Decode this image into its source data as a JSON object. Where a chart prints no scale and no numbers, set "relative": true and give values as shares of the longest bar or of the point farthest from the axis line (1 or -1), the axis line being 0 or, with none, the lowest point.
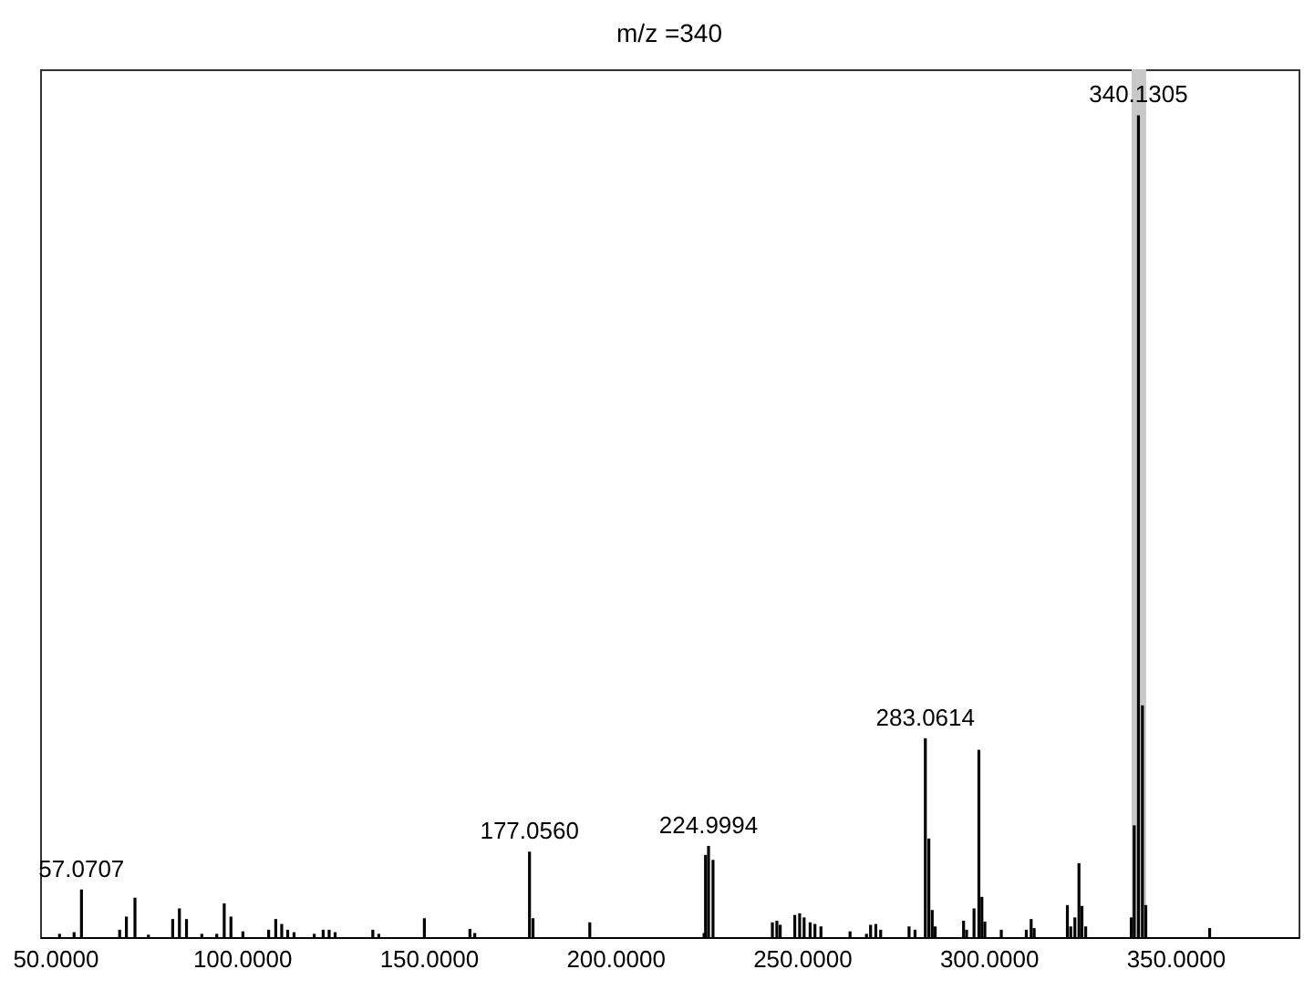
{
  "chart_data": {
    "type": "bar",
    "title": "m/z =340",
    "relative": true,
    "xlim": [
      46,
      383
    ],
    "xticks": [
      {
        "value": 50,
        "label": "50.0000"
      },
      {
        "value": 100,
        "label": "100.0000"
      },
      {
        "value": 150,
        "label": "150.0000"
      },
      {
        "value": 200,
        "label": "200.0000"
      },
      {
        "value": 250,
        "label": "250.0000"
      },
      {
        "value": 300,
        "label": "300.0000"
      },
      {
        "value": 350,
        "label": "350.0000"
      }
    ],
    "x": [
      51.2,
      55.1,
      57.0707,
      67.3,
      69.1,
      71.4,
      75.0,
      81.5,
      83.3,
      85.2,
      89.3,
      93.3,
      95.3,
      97.1,
      100.3,
      107.2,
      109.1,
      110.7,
      112.3,
      114.0,
      119.4,
      121.8,
      123.4,
      125.0,
      135.1,
      136.7,
      148.9,
      161.1,
      162.4,
      177.056,
      178.0,
      193.2,
      223.8,
      224.2,
      224.9994,
      226.2,
      242.1,
      243.3,
      244.2,
      248.1,
      249.4,
      250.6,
      252.2,
      253.5,
      255.1,
      262.9,
      267.3,
      268.4,
      269.8,
      271.1,
      278.7,
      280.3,
      283.0614,
      284.0,
      284.9,
      285.7,
      293.3,
      294.1,
      296.1,
      297.4,
      298.2,
      299.0,
      303.4,
      310.1,
      311.4,
      312.2,
      321.1,
      322.0,
      323.1,
      324.2,
      325.0,
      326.0,
      338.2,
      339.0,
      340.1305,
      341.2,
      342.1,
      359.2
    ],
    "series": [
      {
        "color": "#000000",
        "values": [
          0.004,
          0.006,
          0.058,
          0.009,
          0.025,
          0.048,
          0.003,
          0.022,
          0.035,
          0.022,
          0.004,
          0.004,
          0.041,
          0.025,
          0.007,
          0.009,
          0.022,
          0.016,
          0.009,
          0.006,
          0.004,
          0.009,
          0.009,
          0.006,
          0.009,
          0.004,
          0.023,
          0.01,
          0.005,
          0.104,
          0.023,
          0.018,
          0.005,
          0.1,
          0.111,
          0.094,
          0.018,
          0.02,
          0.015,
          0.027,
          0.029,
          0.024,
          0.018,
          0.016,
          0.013,
          0.007,
          0.004,
          0.015,
          0.016,
          0.009,
          0.013,
          0.009,
          0.242,
          0.12,
          0.033,
          0.013,
          0.02,
          0.009,
          0.035,
          0.228,
          0.049,
          0.019,
          0.009,
          0.009,
          0.022,
          0.011,
          0.039,
          0.013,
          0.024,
          0.09,
          0.038,
          0.013,
          0.024,
          0.136,
          1,
          0.282,
          0.039,
          0.011
        ]
      }
    ],
    "bands": [
      {
        "axis": "x",
        "from": 338.3,
        "to": 342.2,
        "color": "#c8c8c8"
      }
    ],
    "annotations": [
      {
        "text": "57.0707",
        "x": 57.0707,
        "y": 0.058
      },
      {
        "text": "177.0560",
        "x": 177.056,
        "y": 0.104
      },
      {
        "text": "224.9994",
        "x": 224.9994,
        "y": 0.111
      },
      {
        "text": "283.0614",
        "x": 283.0614,
        "y": 0.242
      },
      {
        "text": "340.1305",
        "x": 340.1305,
        "y": 1
      }
    ],
    "tick_labels": "x"
  }
}
